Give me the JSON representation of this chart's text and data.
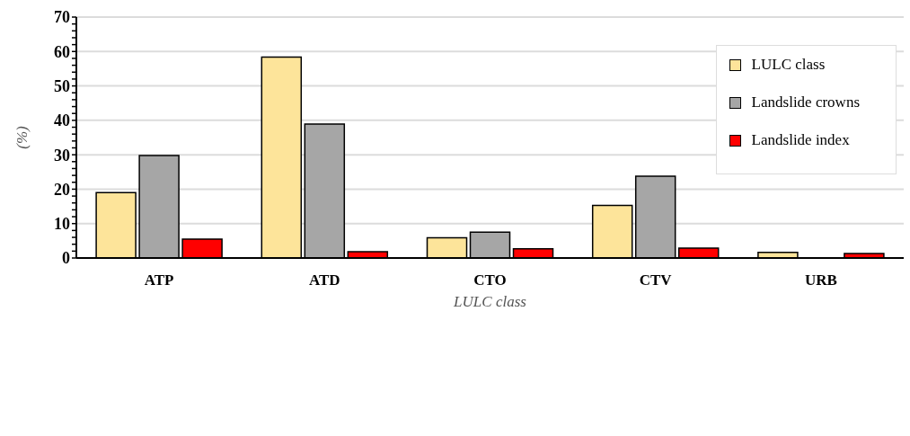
{
  "chart_data": {
    "type": "bar",
    "xlabel": "LULC class",
    "ylabel": "(%)",
    "categories": [
      "ATP",
      "ATD",
      "CTO",
      "CTV",
      "URB"
    ],
    "series": [
      {
        "name": "LULC class",
        "color": "#fde49a",
        "values": [
          19.0,
          58.4,
          5.9,
          15.3,
          1.6
        ]
      },
      {
        "name": "Landslide crowns",
        "color": "#a6a6a6",
        "values": [
          29.8,
          38.9,
          7.5,
          23.8,
          0
        ]
      },
      {
        "name": "Landslide index",
        "color": "#ff0000",
        "values": [
          5.5,
          1.8,
          2.7,
          2.9,
          1.3
        ]
      }
    ],
    "ylim": [
      0,
      70
    ],
    "yticks": [
      0,
      {
        "value": 2,
        "label": null
      },
      {
        "value": 4,
        "label": null
      },
      {
        "value": 6,
        "label": null
      },
      {
        "value": 8,
        "label": null
      },
      10,
      {
        "value": 12,
        "label": null
      },
      {
        "value": 14,
        "label": null
      },
      {
        "value": 16,
        "label": null
      },
      {
        "value": 18,
        "label": null
      },
      20,
      {
        "value": 22,
        "label": null
      },
      {
        "value": 24,
        "label": null
      },
      {
        "value": 26,
        "label": null
      },
      {
        "value": 28,
        "label": null
      },
      30,
      {
        "value": 32,
        "label": null
      },
      {
        "value": 34,
        "label": null
      },
      {
        "value": 36,
        "label": null
      },
      {
        "value": 38,
        "label": null
      },
      40,
      {
        "value": 42,
        "label": null
      },
      {
        "value": 44,
        "label": null
      },
      {
        "value": 46,
        "label": null
      },
      {
        "value": 48,
        "label": null
      },
      50,
      {
        "value": 52,
        "label": null
      },
      {
        "value": 54,
        "label": null
      },
      {
        "value": 56,
        "label": null
      },
      {
        "value": 58,
        "label": null
      },
      60,
      {
        "value": 62,
        "label": null
      },
      {
        "value": 64,
        "label": null
      },
      {
        "value": 66,
        "label": null
      },
      {
        "value": 68,
        "label": null
      },
      70
    ],
    "grid": "y",
    "legend": "top right"
  }
}
